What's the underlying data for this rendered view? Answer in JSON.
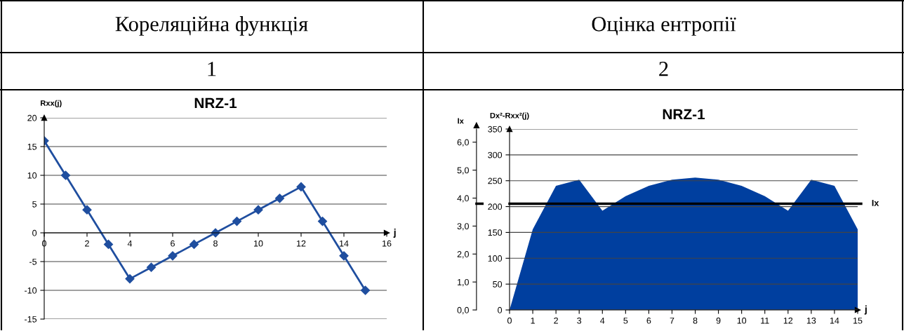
{
  "chart_data": [
    {
      "type": "line",
      "title": "NRZ-1",
      "annotations": [
        "Кореляційна функція",
        "1"
      ],
      "xlabel": "j",
      "ylabel": "Rxx(j)",
      "x": [
        0,
        1,
        2,
        3,
        4,
        5,
        6,
        7,
        8,
        9,
        10,
        11,
        12,
        13,
        14,
        15
      ],
      "series": [
        {
          "color": "#1f4e9f",
          "values": [
            16,
            10,
            4,
            -2,
            -8,
            -6,
            -4,
            -2,
            0,
            2,
            4,
            6,
            8,
            2,
            -4,
            -10
          ]
        }
      ],
      "xlim": [
        0,
        16
      ],
      "xticks": [
        0,
        2,
        4,
        6,
        8,
        10,
        12,
        14,
        16
      ],
      "ylim": [
        -15,
        20
      ],
      "yticks": [
        -15,
        -10,
        -5,
        0,
        5,
        10,
        15,
        20
      ],
      "grid": "y",
      "marker": "diamond",
      "line_style": "solid"
    },
    {
      "type": "area",
      "title": "NRZ-1",
      "annotations": [
        "Оцінка ентропії",
        "2"
      ],
      "xlabel": "j",
      "ylabel": "Dx²-Rxx²(j)",
      "y2label": "Ix",
      "x": [
        0,
        1,
        2,
        3,
        4,
        5,
        6,
        7,
        8,
        9,
        10,
        11,
        12,
        13,
        14,
        15
      ],
      "series": [
        {
          "color": "#003f9f",
          "values": [
            0,
            156,
            240,
            252,
            192,
            220,
            240,
            252,
            256,
            252,
            240,
            220,
            192,
            252,
            240,
            156
          ]
        }
      ],
      "xlim": [
        0,
        15
      ],
      "xticks": [
        0,
        1,
        2,
        3,
        4,
        5,
        6,
        7,
        8,
        9,
        10,
        11,
        12,
        13,
        14,
        15
      ],
      "ylim": [
        0,
        350
      ],
      "yticks": [
        0,
        50,
        100,
        150,
        200,
        250,
        300,
        350
      ],
      "y2lim": [
        0,
        6.47
      ],
      "y2ticks": [
        {
          "value": 0,
          "label": "0,0"
        },
        {
          "value": 1,
          "label": "1,0"
        },
        {
          "value": 2,
          "label": "2,0"
        },
        {
          "value": 3,
          "label": "3,0"
        },
        {
          "value": 4,
          "label": "4,0"
        },
        {
          "value": 5,
          "label": "5,0"
        },
        {
          "value": 6,
          "label": "6,0"
        }
      ],
      "ref_lines": [
        {
          "axis": "y2",
          "value": 3.8,
          "label": "Ix",
          "color": "#000000"
        }
      ],
      "grid": "y"
    }
  ]
}
